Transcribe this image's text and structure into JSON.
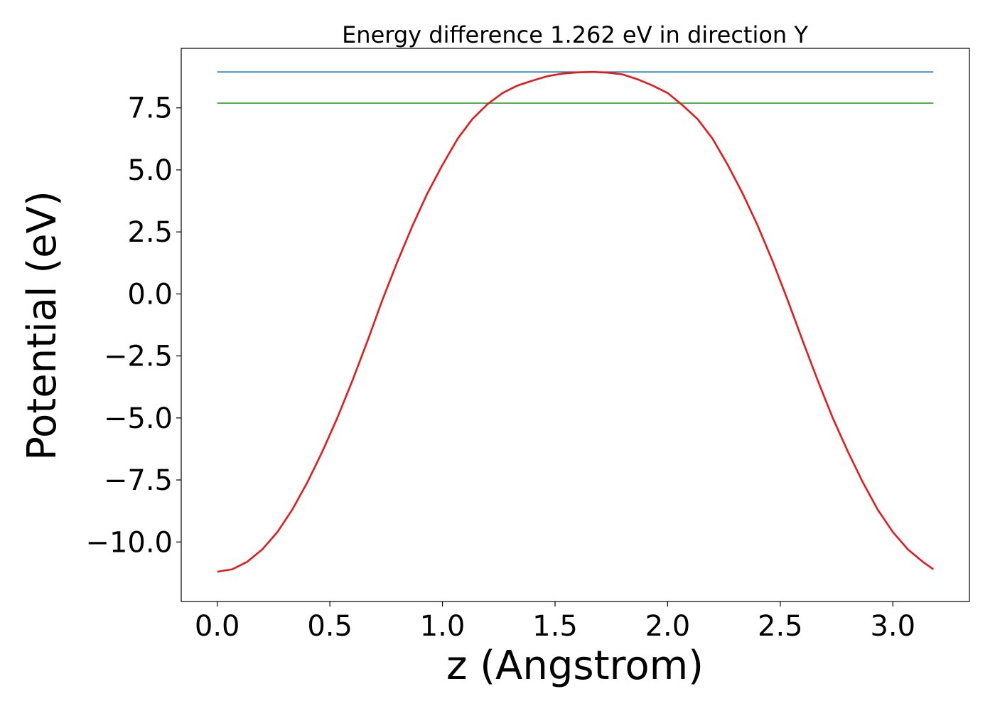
{
  "chart_data": {
    "type": "line",
    "title": "Energy difference 1.262 eV in direction Y",
    "xlabel": "z (Angstrom)",
    "ylabel": "Potential (eV)",
    "xlim": [
      -0.16,
      3.34
    ],
    "ylim": [
      -12.4,
      9.9
    ],
    "xticks": [
      0.0,
      0.5,
      1.0,
      1.5,
      2.0,
      2.5,
      3.0
    ],
    "xtick_labels": [
      "0.0",
      "0.5",
      "1.0",
      "1.5",
      "2.0",
      "2.5",
      "3.0"
    ],
    "yticks": [
      -10.0,
      -7.5,
      -5.0,
      -2.5,
      0.0,
      2.5,
      5.0,
      7.5
    ],
    "ytick_labels": [
      "−10.0",
      "−7.5",
      "−5.0",
      "−2.5",
      "0.0",
      "2.5",
      "5.0",
      "7.5"
    ],
    "grid": false,
    "colors": {
      "max_line": "#1f77b4",
      "min_line": "#2ca02c",
      "curve": "#e41a1c"
    },
    "series": [
      {
        "role": "potential",
        "x": [
          0.0,
          0.067,
          0.133,
          0.2,
          0.267,
          0.333,
          0.4,
          0.467,
          0.533,
          0.6,
          0.667,
          0.733,
          0.8,
          0.867,
          0.933,
          1.0,
          1.067,
          1.133,
          1.2,
          1.267,
          1.333,
          1.4,
          1.467,
          1.533,
          1.6,
          1.667,
          1.733,
          1.8,
          1.867,
          1.933,
          2.0,
          2.067,
          2.133,
          2.2,
          2.267,
          2.333,
          2.4,
          2.467,
          2.533,
          2.6,
          2.667,
          2.733,
          2.8,
          2.867,
          2.933,
          3.0,
          3.067,
          3.133,
          3.18
        ],
        "y": [
          -11.2,
          -11.1,
          -10.8,
          -10.3,
          -9.6,
          -8.7,
          -7.6,
          -6.35,
          -5.0,
          -3.5,
          -1.9,
          -0.25,
          1.3,
          2.75,
          4.05,
          5.2,
          6.25,
          7.05,
          7.65,
          8.1,
          8.4,
          8.6,
          8.78,
          8.88,
          8.93,
          8.95,
          8.92,
          8.85,
          8.65,
          8.4,
          8.1,
          7.6,
          7.05,
          6.25,
          5.2,
          4.05,
          2.75,
          1.3,
          -0.25,
          -1.9,
          -3.5,
          -5.0,
          -6.35,
          -7.6,
          -8.7,
          -9.6,
          -10.3,
          -10.8,
          -11.1
        ]
      },
      {
        "role": "maximum",
        "x": [
          0.0,
          3.18
        ],
        "y": [
          8.95,
          8.95
        ]
      },
      {
        "role": "minimum",
        "x": [
          0.0,
          3.18
        ],
        "y": [
          7.69,
          7.69
        ]
      }
    ]
  }
}
